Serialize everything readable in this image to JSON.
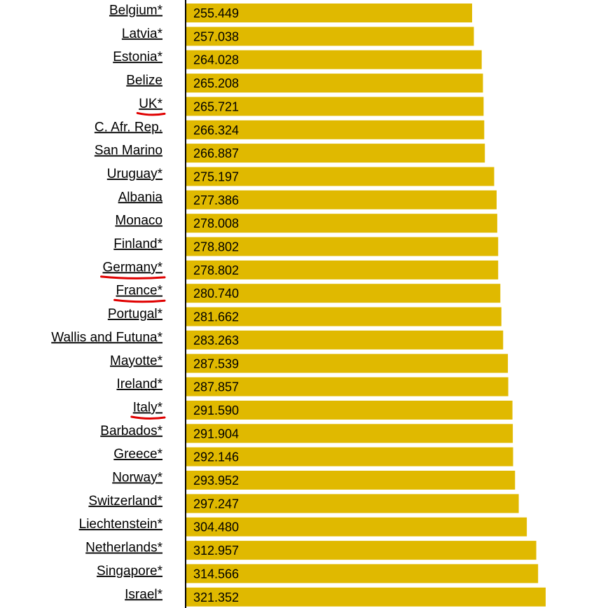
{
  "chart_data": {
    "type": "bar",
    "orientation": "horizontal",
    "categories": [
      "Belgium*",
      "Latvia*",
      "Estonia*",
      "Belize ",
      "UK*",
      "C. Afr. Rep. ",
      "San Marino ",
      "Uruguay*",
      "Albania ",
      "Monaco ",
      "Finland*",
      "Germany*",
      "France*",
      "Portugal*",
      "Wallis and Futuna*",
      "Mayotte*",
      "Ireland*",
      "Italy*",
      "Barbados*",
      "Greece*",
      "Norway*",
      "Switzerland*",
      "Liechtenstein*",
      "Netherlands*",
      "Singapore*",
      "Israel*"
    ],
    "value_labels": [
      "255.449",
      "257.038",
      "264.028",
      "265.208",
      "265.721",
      "266.324",
      "266.887",
      "275.197",
      "277.386",
      "278.008",
      "278.802",
      "278.802",
      "280.740",
      "281.662",
      "283.263",
      "287.539",
      "287.857",
      "291.590",
      "291.904",
      "292.146",
      "293.952",
      "297.247",
      "304.480",
      "312.957",
      "314.566",
      "321.352"
    ],
    "values": [
      255.449,
      257.038,
      264.028,
      265.208,
      265.721,
      266.324,
      266.887,
      275.197,
      277.386,
      278.008,
      278.802,
      278.802,
      280.74,
      281.662,
      283.263,
      287.539,
      287.857,
      291.59,
      291.904,
      292.146,
      293.952,
      297.247,
      304.48,
      312.957,
      314.566,
      321.352
    ],
    "highlighted": [
      "UK*",
      "Germany*",
      "France*",
      "Italy*"
    ],
    "bar_color": "#e0b900",
    "highlight_color": "#e00000",
    "label_color": "#000000",
    "title": "",
    "xlabel": "",
    "ylabel": "",
    "grid": false,
    "legend": "none"
  }
}
